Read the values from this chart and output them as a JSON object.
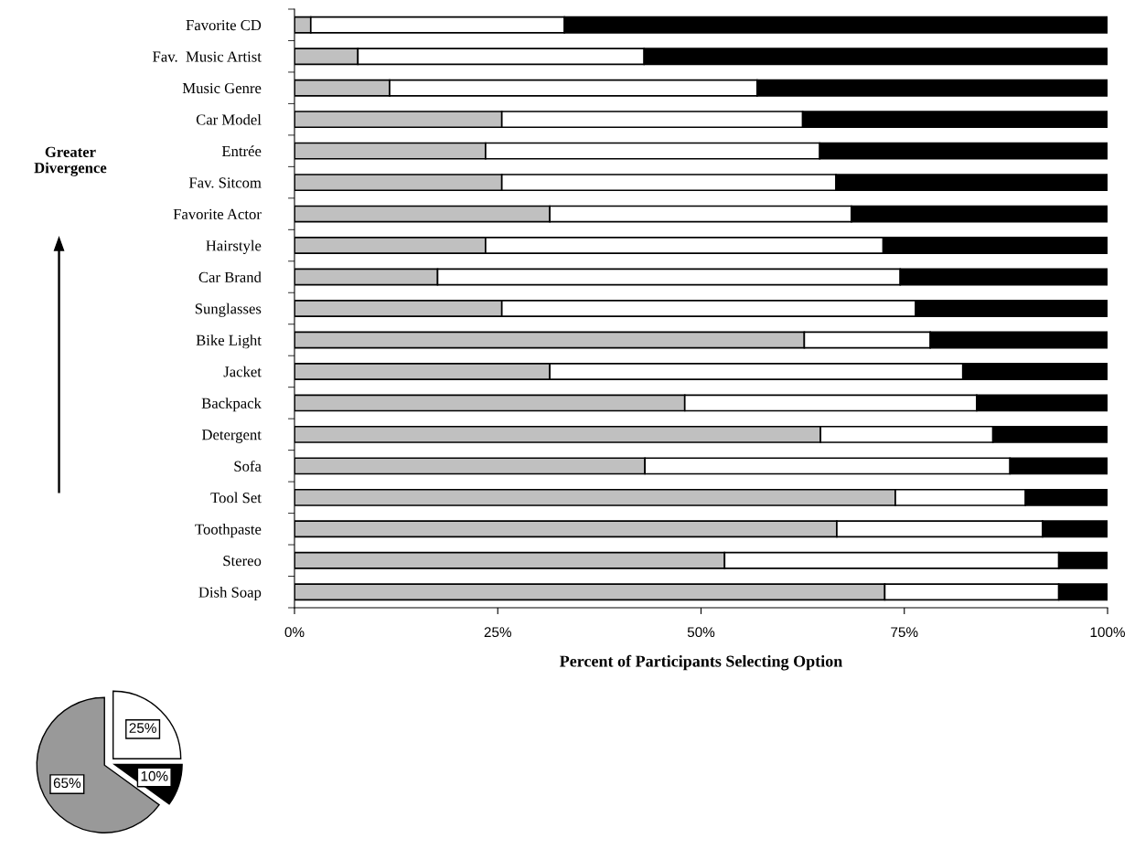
{
  "chart_data": [
    {
      "type": "bar",
      "orientation": "horizontal",
      "stacked": true,
      "xlabel": "Percent of Participants Selecting Option",
      "categories": [
        "Favorite CD",
        "Fav.  Music Artist",
        "Music Genre",
        "Car Model",
        "Entrée",
        "Fav. Sitcom",
        "Favorite Actor",
        "Hairstyle",
        "Car Brand",
        "Sunglasses",
        "Bike Light",
        "Jacket",
        "Backpack",
        "Detergent",
        "Sofa",
        "Tool Set",
        "Toothpaste",
        "Stereo",
        "Dish Soap"
      ],
      "series": [
        {
          "color": "#c0c0c0",
          "values": [
            2,
            7.8,
            11.7,
            25.5,
            23.5,
            25.5,
            31.4,
            23.5,
            17.6,
            25.5,
            62.7,
            31.4,
            48,
            64.7,
            43.1,
            73.9,
            66.7,
            52.9,
            72.6
          ]
        },
        {
          "color": "#ffffff",
          "values": [
            31.2,
            35.2,
            45.2,
            37,
            41.1,
            41.1,
            37.1,
            48.9,
            56.9,
            50.9,
            15.5,
            50.8,
            35.9,
            21.2,
            44.9,
            16,
            25.3,
            41.1,
            21.4
          ]
        },
        {
          "color": "#000000",
          "values": [
            66.8,
            57,
            43.1,
            37.5,
            35.4,
            33.4,
            31.5,
            27.6,
            25.5,
            23.6,
            21.8,
            17.8,
            16.1,
            14.1,
            12,
            10.1,
            8,
            6,
            6
          ]
        }
      ],
      "xlim": [
        0,
        100
      ],
      "xticks": [
        {
          "value": 0,
          "label": "0%"
        },
        {
          "value": 25,
          "label": "25%"
        },
        {
          "value": 50,
          "label": "50%"
        },
        {
          "value": 75,
          "label": "75%"
        },
        {
          "value": 100,
          "label": "100%"
        }
      ],
      "annotations": [
        "Greater\nDivergence"
      ],
      "grid": false,
      "legend": false
    },
    {
      "type": "pie",
      "categories": [
        null,
        null,
        null
      ],
      "values": [
        25,
        10,
        65
      ],
      "colors": [
        "#ffffff",
        "#000000",
        "#999999"
      ],
      "value_labels": [
        "25%",
        "10%",
        "65%"
      ]
    }
  ]
}
